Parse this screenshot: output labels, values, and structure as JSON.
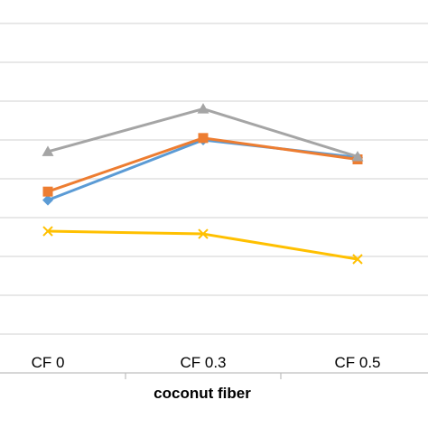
{
  "chart_data": {
    "type": "line",
    "xlabel": "coconut fiber",
    "ylabel": "",
    "categories": [
      "CF 0",
      "CF 0.3",
      "CF 0.5"
    ],
    "y_gridlines": 9,
    "grid": true,
    "legend": "none",
    "series": [
      {
        "color": "#5B9BD5",
        "marker": "diamond",
        "values": [
          4.45,
          6.0,
          5.55
        ]
      },
      {
        "color": "#ED7D31",
        "marker": "square",
        "values": [
          4.67,
          6.05,
          5.5
        ]
      },
      {
        "color": "#A5A5A5",
        "marker": "triangle",
        "values": [
          5.7,
          6.8,
          5.57
        ]
      },
      {
        "color": "#FFC000",
        "marker": "x",
        "values": [
          3.65,
          3.58,
          2.93
        ]
      }
    ]
  }
}
